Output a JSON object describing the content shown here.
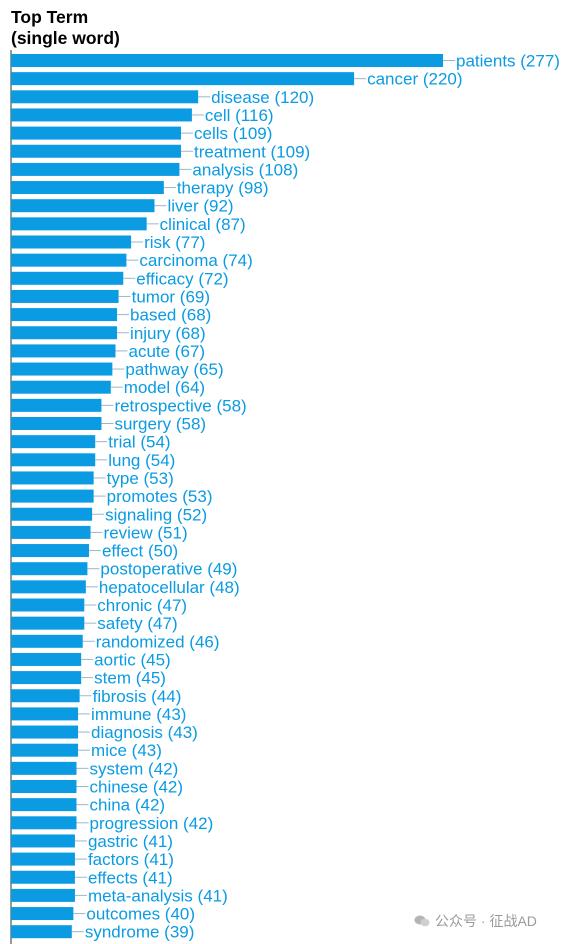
{
  "chart_title_lines": [
    "Top Term",
    "(single word)"
  ],
  "watermark": "公众号 · 征战AD",
  "colors": {
    "bar": "#0a9be3",
    "label": "#0a9be3",
    "axis": "#333333"
  },
  "chart_data": {
    "type": "bar",
    "orientation": "horizontal",
    "title": "Top Term (single word)",
    "categories": [
      "patients",
      "cancer",
      "disease",
      "cell",
      "cells",
      "treatment",
      "analysis",
      "therapy",
      "liver",
      "clinical",
      "risk",
      "carcinoma",
      "efficacy",
      "tumor",
      "based",
      "injury",
      "acute",
      "pathway",
      "model",
      "retrospective",
      "surgery",
      "trial",
      "lung",
      "type",
      "promotes",
      "signaling",
      "review",
      "effect",
      "postoperative",
      "hepatocellular",
      "chronic",
      "safety",
      "randomized",
      "aortic",
      "stem",
      "fibrosis",
      "immune",
      "diagnosis",
      "mice",
      "system",
      "chinese",
      "china",
      "progression",
      "gastric",
      "factors",
      "effects",
      "meta-analysis",
      "outcomes",
      "syndrome"
    ],
    "values": [
      277,
      220,
      120,
      116,
      109,
      109,
      108,
      98,
      92,
      87,
      77,
      74,
      72,
      69,
      68,
      68,
      67,
      65,
      64,
      58,
      58,
      54,
      54,
      53,
      53,
      52,
      51,
      50,
      49,
      48,
      47,
      47,
      46,
      45,
      45,
      44,
      43,
      43,
      43,
      42,
      42,
      42,
      42,
      41,
      41,
      41,
      41,
      40,
      39
    ],
    "labels": [
      "patients (277)",
      "cancer (220)",
      "disease (120)",
      "cell (116)",
      "cells (109)",
      "treatment (109)",
      "analysis (108)",
      "therapy (98)",
      "liver (92)",
      "clinical (87)",
      "risk (77)",
      "carcinoma (74)",
      "efficacy (72)",
      "tumor (69)",
      "based (68)",
      "injury (68)",
      "acute (67)",
      "pathway (65)",
      "model (64)",
      "retrospective (58)",
      "surgery (58)",
      "trial (54)",
      "lung (54)",
      "type (53)",
      "promotes (53)",
      "signaling (52)",
      "review (51)",
      "effect (50)",
      "postoperative (49)",
      "hepatocellular (48)",
      "chronic (47)",
      "safety (47)",
      "randomized (46)",
      "aortic (45)",
      "stem (45)",
      "fibrosis (44)",
      "immune (43)",
      "diagnosis (43)",
      "mice (43)",
      "system (42)",
      "chinese (42)",
      "china (42)",
      "progression (42)",
      "gastric (41)",
      "factors (41)",
      "effects (41)",
      "meta-analysis (41)",
      "outcomes (40)",
      "syndrome (39)"
    ],
    "xlim": [
      0,
      277
    ],
    "grid": false,
    "legend": "none"
  }
}
